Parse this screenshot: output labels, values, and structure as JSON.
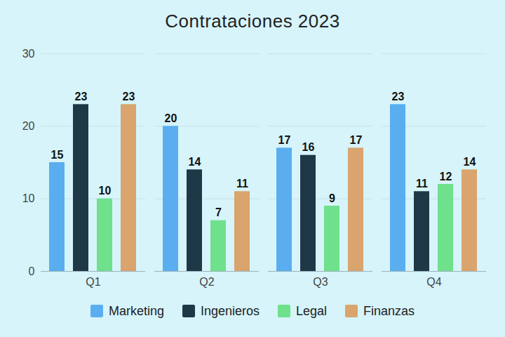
{
  "chart_data": {
    "type": "bar",
    "title": "Contrataciones 2023",
    "categories": [
      "Q1",
      "Q2",
      "Q3",
      "Q4"
    ],
    "series": [
      {
        "name": "Marketing",
        "color": "#5aaef0",
        "values": [
          15,
          20,
          17,
          23
        ]
      },
      {
        "name": "Ingenieros",
        "color": "#1f3848",
        "values": [
          23,
          14,
          16,
          11
        ]
      },
      {
        "name": "Legal",
        "color": "#6fe08c",
        "values": [
          10,
          7,
          9,
          12
        ]
      },
      {
        "name": "Finanzas",
        "color": "#d9a46e",
        "values": [
          23,
          11,
          17,
          14
        ]
      }
    ],
    "ylim": [
      0,
      30
    ],
    "yticks": [
      0,
      10,
      20,
      30
    ],
    "grid": true,
    "data_labels": true,
    "legend": "bottom"
  }
}
